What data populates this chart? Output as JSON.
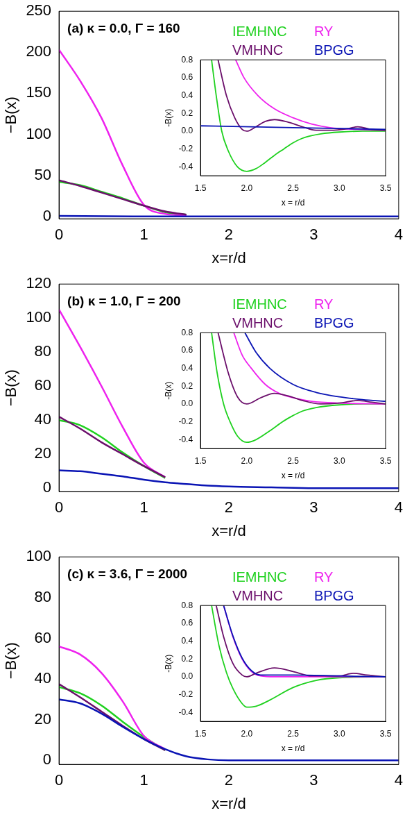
{
  "chart_data": [
    {
      "type": "line",
      "title": "(a) κ = 0.0, Γ = 160",
      "xlabel": "x=r/d",
      "ylabel": "−B(x)",
      "xlim": [
        0,
        4
      ],
      "xticks": [
        0,
        1,
        2,
        3,
        4
      ],
      "ylim": [
        -3,
        250
      ],
      "yticks": [
        0,
        50,
        100,
        150,
        200,
        250
      ],
      "grid": false,
      "legend": "top right",
      "series": [
        {
          "name": "IEMHNC",
          "color": "#1fd11f",
          "x": [
            0,
            0.25,
            0.5,
            0.75,
            1,
            1.25,
            1.5
          ],
          "values": [
            42,
            38,
            30,
            22,
            13,
            5,
            2
          ]
        },
        {
          "name": "RY",
          "color": "#ee22ee",
          "x": [
            0,
            0.25,
            0.5,
            0.75,
            1,
            1.25,
            1.5
          ],
          "values": [
            203,
            165,
            120,
            62,
            14,
            3,
            1
          ]
        },
        {
          "name": "VMHNC",
          "color": "#6b0f6b",
          "x": [
            0,
            0.25,
            0.5,
            0.75,
            1,
            1.25,
            1.5
          ],
          "values": [
            44,
            37,
            29,
            21,
            13,
            6,
            2
          ]
        },
        {
          "name": "BPGG",
          "color": "#0a14b4",
          "x": [
            0,
            1,
            2,
            3,
            4
          ],
          "values": [
            0.5,
            0,
            0,
            0,
            0
          ]
        }
      ]
    },
    {
      "type": "line",
      "xlabel": "x = r/d",
      "ylabel": "-B(x)",
      "xlim": [
        1.5,
        3.5
      ],
      "xticks": [
        {
          "value": 1.5,
          "label": "1.5"
        },
        {
          "value": 2,
          "label": "2.0"
        },
        {
          "value": 2.5,
          "label": "2.5"
        },
        {
          "value": 3,
          "label": "3.0"
        },
        {
          "value": 3.5,
          "label": "3.5"
        }
      ],
      "ylim": [
        -0.5,
        0.8
      ],
      "yticks": [
        {
          "value": -0.4,
          "label": "-0.4"
        },
        {
          "value": -0.2,
          "label": "-0.2"
        },
        {
          "value": 0,
          "label": "0.0"
        },
        {
          "value": 0.2,
          "label": "0.2"
        },
        {
          "value": 0.4,
          "label": "0.4"
        },
        {
          "value": 0.6,
          "label": "0.6"
        },
        {
          "value": 0.8,
          "label": "0.8"
        }
      ],
      "grid": false,
      "series": [
        {
          "color": "#1fd11f",
          "x": [
            1.62,
            1.67,
            1.73,
            1.8,
            1.9,
            2.0,
            2.1,
            2.2,
            2.3,
            2.4,
            2.5,
            2.6,
            2.7,
            2.8,
            3.0,
            3.25,
            3.5
          ],
          "values": [
            0.8,
            0.4,
            0,
            -0.22,
            -0.4,
            -0.45,
            -0.42,
            -0.35,
            -0.27,
            -0.2,
            -0.13,
            -0.08,
            -0.05,
            -0.03,
            -0.01,
            0,
            0
          ]
        },
        {
          "color": "#ee22ee",
          "x": [
            1.88,
            1.97,
            2.12,
            2.3,
            2.5,
            2.7,
            2.9,
            3.2,
            3.5
          ],
          "values": [
            0.8,
            0.6,
            0.4,
            0.25,
            0.15,
            0.08,
            0.04,
            0.02,
            0.01
          ]
        },
        {
          "color": "#6b0f6b",
          "x": [
            1.69,
            1.78,
            1.87,
            1.95,
            2.0,
            2.1,
            2.2,
            2.3,
            2.45,
            2.6,
            2.75,
            2.9,
            3.1,
            3.2,
            3.35,
            3.5
          ],
          "values": [
            0.8,
            0.4,
            0.15,
            0.02,
            0,
            0.05,
            0.11,
            0.13,
            0.1,
            0.05,
            0.01,
            0.01,
            0.03,
            0.05,
            0.02,
            0.01
          ]
        },
        {
          "color": "#0a14b4",
          "x": [
            1.5,
            2.5,
            3.5
          ],
          "values": [
            0.06,
            0.04,
            0.02
          ]
        }
      ]
    },
    {
      "type": "line",
      "title": "(b) κ = 1.0, Γ = 200",
      "xlabel": "x=r/d",
      "ylabel": "−B(x)",
      "xlim": [
        0,
        4
      ],
      "xticks": [
        0,
        1,
        2,
        3,
        4
      ],
      "ylim": [
        -2,
        120
      ],
      "yticks": [
        0,
        20,
        40,
        60,
        80,
        100,
        120
      ],
      "grid": false,
      "legend": "top right",
      "series": [
        {
          "name": "IEMHNC",
          "color": "#1fd11f",
          "x": [
            0,
            0.25,
            0.5,
            0.75,
            1,
            1.25
          ],
          "values": [
            40,
            37,
            30,
            21,
            13,
            6
          ]
        },
        {
          "name": "RY",
          "color": "#ee22ee",
          "x": [
            0,
            0.25,
            0.5,
            0.75,
            1,
            1.25
          ],
          "values": [
            105,
            83,
            60,
            36,
            15,
            6.5
          ]
        },
        {
          "name": "VMHNC",
          "color": "#6b0f6b",
          "x": [
            0,
            0.25,
            0.5,
            0.75,
            1,
            1.25
          ],
          "values": [
            42,
            35,
            27,
            20,
            13,
            6.5
          ]
        },
        {
          "name": "BPGG",
          "color": "#0a14b4",
          "x": [
            0,
            0.25,
            0.5,
            0.75,
            1,
            1.25,
            1.5,
            1.75,
            2,
            2.5,
            3,
            3.5,
            4
          ],
          "values": [
            10.5,
            10,
            8.5,
            7,
            5,
            3.5,
            2.5,
            1.5,
            1,
            0.5,
            0,
            0,
            0
          ]
        }
      ]
    },
    {
      "type": "line",
      "xlabel": "x = r/d",
      "ylabel": "-B(x)",
      "xlim": [
        1.5,
        3.5
      ],
      "xticks": [
        {
          "value": 1.5,
          "label": "1.5"
        },
        {
          "value": 2,
          "label": "2.0"
        },
        {
          "value": 2.5,
          "label": "2.5"
        },
        {
          "value": 3,
          "label": "3.0"
        },
        {
          "value": 3.5,
          "label": "3.5"
        }
      ],
      "ylim": [
        -0.5,
        0.8
      ],
      "yticks": [
        {
          "value": -0.4,
          "label": "-0.4"
        },
        {
          "value": -0.2,
          "label": "-0.2"
        },
        {
          "value": 0,
          "label": "0.0"
        },
        {
          "value": 0.2,
          "label": "0.2"
        },
        {
          "value": 0.4,
          "label": "0.4"
        },
        {
          "value": 0.6,
          "label": "0.6"
        },
        {
          "value": 0.8,
          "label": "0.8"
        }
      ],
      "grid": false,
      "series": [
        {
          "color": "#1fd11f",
          "x": [
            1.62,
            1.68,
            1.75,
            1.82,
            1.9,
            2.0,
            2.1,
            2.25,
            2.4,
            2.5,
            2.6,
            2.75,
            3.0,
            3.25,
            3.5
          ],
          "values": [
            0.8,
            0.35,
            0,
            -0.2,
            -0.36,
            -0.43,
            -0.4,
            -0.3,
            -0.19,
            -0.13,
            -0.08,
            -0.04,
            -0.01,
            0,
            0
          ]
        },
        {
          "color": "#ee22ee",
          "x": [
            1.86,
            1.95,
            2.05,
            2.2,
            2.35,
            2.5,
            2.7,
            3.0,
            3.5
          ],
          "values": [
            0.8,
            0.55,
            0.4,
            0.22,
            0.12,
            0.07,
            0.03,
            0.01,
            0
          ]
        },
        {
          "color": "#6b0f6b",
          "x": [
            1.69,
            1.8,
            1.9,
            2.0,
            2.15,
            2.3,
            2.45,
            2.6,
            2.8,
            3.0,
            3.2,
            3.35,
            3.5
          ],
          "values": [
            0.8,
            0.35,
            0.08,
            0,
            0.07,
            0.12,
            0.09,
            0.04,
            0,
            0.01,
            0.04,
            0.02,
            0
          ]
        },
        {
          "color": "#0a14b4",
          "x": [
            1.98,
            2.1,
            2.25,
            2.5,
            2.75,
            3.0,
            3.25,
            3.5
          ],
          "values": [
            0.8,
            0.58,
            0.4,
            0.22,
            0.13,
            0.08,
            0.05,
            0.03
          ]
        }
      ]
    },
    {
      "type": "line",
      "title": "(c) κ = 3.6, Γ = 2000",
      "xlabel": "x=r/d",
      "ylabel": "−B(x)",
      "xlim": [
        0,
        4
      ],
      "xticks": [
        0,
        1,
        2,
        3,
        4
      ],
      "ylim": [
        -2,
        100
      ],
      "yticks": [
        0,
        20,
        40,
        60,
        80,
        100
      ],
      "grid": false,
      "legend": "top right",
      "series": [
        {
          "name": "IEMHNC",
          "color": "#1fd11f",
          "x": [
            0,
            0.25,
            0.5,
            0.75,
            1,
            1.25
          ],
          "values": [
            36,
            33,
            27,
            19,
            11.5,
            5
          ]
        },
        {
          "name": "RY",
          "color": "#ee22ee",
          "x": [
            0,
            0.25,
            0.5,
            0.75,
            1,
            1.25
          ],
          "values": [
            56,
            52,
            43,
            29,
            12,
            5.5
          ]
        },
        {
          "name": "VMHNC",
          "color": "#6b0f6b",
          "x": [
            0,
            0.25,
            0.5,
            0.75,
            1,
            1.25
          ],
          "values": [
            37.5,
            31,
            24,
            17,
            10.5,
            5
          ]
        },
        {
          "name": "BPGG",
          "color": "#0a14b4",
          "x": [
            0,
            0.25,
            0.5,
            0.75,
            1,
            1.25,
            1.5,
            1.75,
            2,
            2.5,
            3,
            3.5,
            4
          ],
          "values": [
            30,
            28,
            23,
            16.5,
            10.5,
            5.5,
            2,
            0.5,
            0,
            0,
            0,
            0,
            0
          ]
        }
      ]
    },
    {
      "type": "line",
      "xlabel": "x = r/d",
      "ylabel": "-B(x)",
      "xlim": [
        1.5,
        3.5
      ],
      "xticks": [
        {
          "value": 1.5,
          "label": "1.5"
        },
        {
          "value": 2,
          "label": "2.0"
        },
        {
          "value": 2.5,
          "label": "2.5"
        },
        {
          "value": 3,
          "label": "3.0"
        },
        {
          "value": 3.5,
          "label": "3.5"
        }
      ],
      "ylim": [
        -0.5,
        0.8
      ],
      "yticks": [
        {
          "value": -0.4,
          "label": "-0.4"
        },
        {
          "value": -0.2,
          "label": "-0.2"
        },
        {
          "value": 0,
          "label": "0.0"
        },
        {
          "value": 0.2,
          "label": "0.2"
        },
        {
          "value": 0.4,
          "label": "0.4"
        },
        {
          "value": 0.6,
          "label": "0.6"
        },
        {
          "value": 0.8,
          "label": "0.8"
        }
      ],
      "grid": false,
      "series": [
        {
          "color": "#1fd11f",
          "x": [
            1.62,
            1.7,
            1.78,
            1.85,
            1.95,
            2.0,
            2.1,
            2.25,
            2.5,
            2.75,
            3.0,
            3.5
          ],
          "values": [
            0.8,
            0.35,
            0.05,
            -0.13,
            -0.3,
            -0.34,
            -0.33,
            -0.26,
            -0.12,
            -0.04,
            -0.01,
            0
          ]
        },
        {
          "color": "#ee22ee",
          "x": [
            1.75,
            1.85,
            1.95,
            2.05,
            2.15,
            2.3,
            2.5,
            3.0,
            3.5
          ],
          "values": [
            0.8,
            0.45,
            0.2,
            0.06,
            0.01,
            0,
            0,
            0,
            0
          ]
        },
        {
          "color": "#6b0f6b",
          "x": [
            1.67,
            1.75,
            1.85,
            1.95,
            2.0,
            2.1,
            2.3,
            2.5,
            2.7,
            3.0,
            3.15,
            3.3,
            3.5
          ],
          "values": [
            0.8,
            0.45,
            0.15,
            0.02,
            0,
            0.04,
            0.1,
            0.06,
            0.01,
            0.01,
            0.04,
            0.02,
            0
          ]
        },
        {
          "color": "#0a14b4",
          "x": [
            1.75,
            1.85,
            1.95,
            2.05,
            2.15,
            2.3,
            2.5,
            3.0,
            3.5
          ],
          "values": [
            0.8,
            0.46,
            0.21,
            0.07,
            0.02,
            0.02,
            0.02,
            0.01,
            0
          ]
        }
      ]
    }
  ]
}
